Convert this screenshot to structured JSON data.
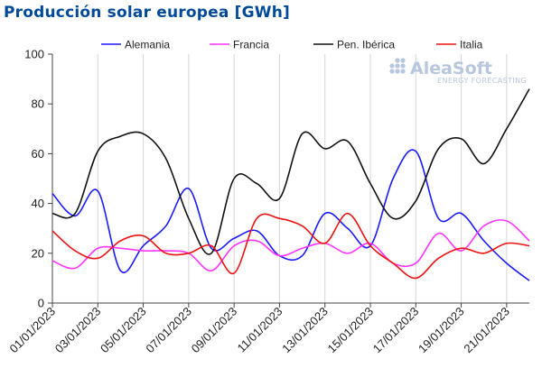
{
  "title": "Producción solar europea [GWh]",
  "watermark": {
    "brand": "AleaSoft",
    "tagline": "ENERGY FORECASTING"
  },
  "chart_data": {
    "type": "line",
    "title": "Producción solar europea [GWh]",
    "xlabel": "",
    "ylabel": "",
    "ylim": [
      0,
      100
    ],
    "yticks": [
      0,
      20,
      40,
      60,
      80,
      100
    ],
    "grid": "vertical",
    "legend_position": "top",
    "x": [
      "01/01/2023",
      "02/01/2023",
      "03/01/2023",
      "04/01/2023",
      "05/01/2023",
      "06/01/2023",
      "07/01/2023",
      "08/01/2023",
      "09/01/2023",
      "10/01/2023",
      "11/01/2023",
      "12/01/2023",
      "13/01/2023",
      "14/01/2023",
      "15/01/2023",
      "16/01/2023",
      "17/01/2023",
      "18/01/2023",
      "19/01/2023",
      "20/01/2023",
      "21/01/2023",
      "22/01/2023"
    ],
    "xtick_labels": [
      "01/01/2023",
      "03/01/2023",
      "05/01/2023",
      "07/01/2023",
      "09/01/2023",
      "11/01/2023",
      "13/01/2023",
      "15/01/2023",
      "17/01/2023",
      "19/01/2023",
      "21/01/2023"
    ],
    "series": [
      {
        "name": "Alemania",
        "color": "#1a1aff",
        "values": [
          44,
          35,
          45,
          13,
          23,
          31,
          46,
          22,
          26,
          29,
          19,
          19,
          36,
          30,
          23,
          50,
          61,
          34,
          36,
          25,
          16,
          9
        ]
      },
      {
        "name": "Francia",
        "color": "#ff33ff",
        "values": [
          17,
          14,
          22,
          22,
          21,
          21,
          20,
          13,
          23,
          25,
          19,
          22,
          24,
          20,
          24,
          16,
          16,
          28,
          21,
          31,
          33,
          25
        ]
      },
      {
        "name": "Pen. Ibérica",
        "color": "#111111",
        "values": [
          36,
          36,
          61,
          67,
          68,
          58,
          34,
          20,
          50,
          48,
          42,
          68,
          62,
          65,
          48,
          34,
          41,
          62,
          66,
          56,
          70,
          86
        ]
      },
      {
        "name": "Italia",
        "color": "#ee1111",
        "values": [
          29,
          21,
          18,
          25,
          27,
          20,
          20,
          23,
          12,
          34,
          34,
          31,
          24,
          36,
          23,
          16,
          10,
          18,
          22,
          20,
          24,
          23
        ]
      }
    ]
  }
}
